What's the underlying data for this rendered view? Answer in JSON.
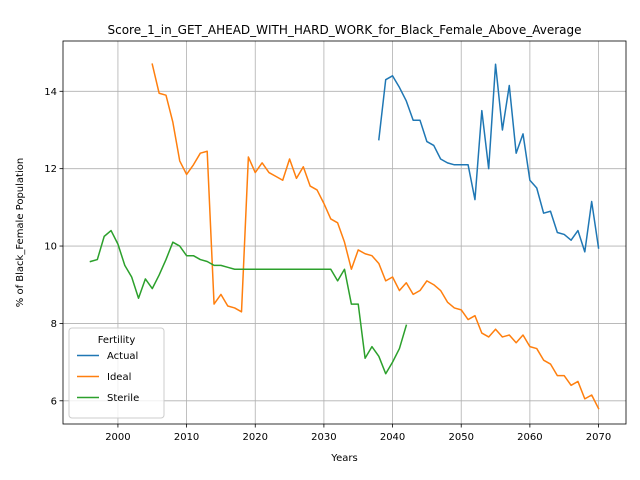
{
  "chart_data": {
    "type": "line",
    "title": "Score_1_in_GET_AHEAD_WITH_HARD_WORK_for_Black_Female_Above_Average",
    "xlabel": "Years",
    "ylabel": "% of Black_Female Population",
    "xlim": [
      1992,
      2074
    ],
    "ylim": [
      5.4,
      15.3
    ],
    "xticks": [
      2000,
      2010,
      2020,
      2030,
      2040,
      2050,
      2060,
      2070
    ],
    "yticks": [
      6,
      8,
      10,
      12,
      14
    ],
    "grid": true,
    "legend": {
      "title": "Fertility",
      "placement": "lower-left"
    },
    "series": [
      {
        "name": "Actual",
        "color": "#1f77b4",
        "x": [
          2038,
          2039,
          2040,
          2041,
          2042,
          2043,
          2044,
          2045,
          2046,
          2047,
          2048,
          2049,
          2050,
          2051,
          2052,
          2053,
          2054,
          2055,
          2056,
          2057,
          2058,
          2059,
          2060,
          2061,
          2062,
          2063,
          2064,
          2065,
          2066,
          2067,
          2068,
          2069,
          2070
        ],
        "y": [
          12.75,
          14.3,
          14.4,
          14.1,
          13.75,
          13.25,
          13.25,
          12.7,
          12.6,
          12.25,
          12.15,
          12.1,
          12.1,
          12.1,
          11.2,
          13.5,
          12.0,
          14.7,
          13.0,
          14.15,
          12.4,
          12.9,
          11.7,
          11.5,
          10.85,
          10.9,
          10.35,
          10.3,
          10.15,
          10.4,
          9.85,
          11.15,
          9.95
        ]
      },
      {
        "name": "Ideal",
        "color": "#ff7f0e",
        "x": [
          2005,
          2006,
          2007,
          2008,
          2009,
          2010,
          2011,
          2012,
          2013,
          2014,
          2015,
          2016,
          2017,
          2018,
          2019,
          2020,
          2021,
          2022,
          2023,
          2024,
          2025,
          2026,
          2027,
          2028,
          2029,
          2030,
          2031,
          2032,
          2033,
          2034,
          2035,
          2036,
          2037,
          2038,
          2039,
          2040,
          2041,
          2042,
          2043,
          2044,
          2045,
          2046,
          2047,
          2048,
          2049,
          2050,
          2051,
          2052,
          2053,
          2054,
          2055,
          2056,
          2057,
          2058,
          2059,
          2060,
          2061,
          2062,
          2063,
          2064,
          2065,
          2066,
          2067,
          2068,
          2069,
          2070
        ],
        "y": [
          14.7,
          13.95,
          13.9,
          13.2,
          12.2,
          11.85,
          12.1,
          12.4,
          12.45,
          8.5,
          8.75,
          8.45,
          8.4,
          8.3,
          12.3,
          11.9,
          12.15,
          11.9,
          11.8,
          11.7,
          12.25,
          11.75,
          12.05,
          11.55,
          11.45,
          11.1,
          10.7,
          10.6,
          10.1,
          9.4,
          9.9,
          9.8,
          9.75,
          9.55,
          9.1,
          9.2,
          8.85,
          9.05,
          8.75,
          8.85,
          9.1,
          9.0,
          8.85,
          8.55,
          8.4,
          8.35,
          8.1,
          8.2,
          7.75,
          7.65,
          7.85,
          7.65,
          7.7,
          7.5,
          7.7,
          7.4,
          7.35,
          7.05,
          6.95,
          6.65,
          6.65,
          6.4,
          6.5,
          6.05,
          6.15,
          5.8
        ]
      },
      {
        "name": "Sterile",
        "color": "#2ca02c",
        "x": [
          1996,
          1997,
          1998,
          1999,
          2000,
          2001,
          2002,
          2003,
          2004,
          2005,
          2006,
          2007,
          2008,
          2009,
          2010,
          2011,
          2012,
          2013,
          2014,
          2015,
          2016,
          2017,
          2018,
          2019,
          2020,
          2021,
          2022,
          2023,
          2024,
          2025,
          2026,
          2027,
          2028,
          2029,
          2030,
          2031,
          2032,
          2033,
          2034,
          2035,
          2036,
          2037,
          2038,
          2039,
          2040,
          2041,
          2042
        ],
        "y": [
          9.6,
          9.65,
          10.25,
          10.4,
          10.05,
          9.5,
          9.2,
          8.65,
          9.15,
          8.9,
          9.25,
          9.65,
          10.1,
          10.0,
          9.75,
          9.75,
          9.65,
          9.6,
          9.5,
          9.5,
          9.45,
          9.4,
          9.4,
          9.4,
          9.4,
          9.4,
          9.4,
          9.4,
          9.4,
          9.4,
          9.4,
          9.4,
          9.4,
          9.4,
          9.4,
          9.4,
          9.1,
          9.4,
          8.5,
          8.5,
          7.1,
          7.4,
          7.15,
          6.7,
          7.0,
          7.35,
          7.95
        ]
      }
    ]
  }
}
